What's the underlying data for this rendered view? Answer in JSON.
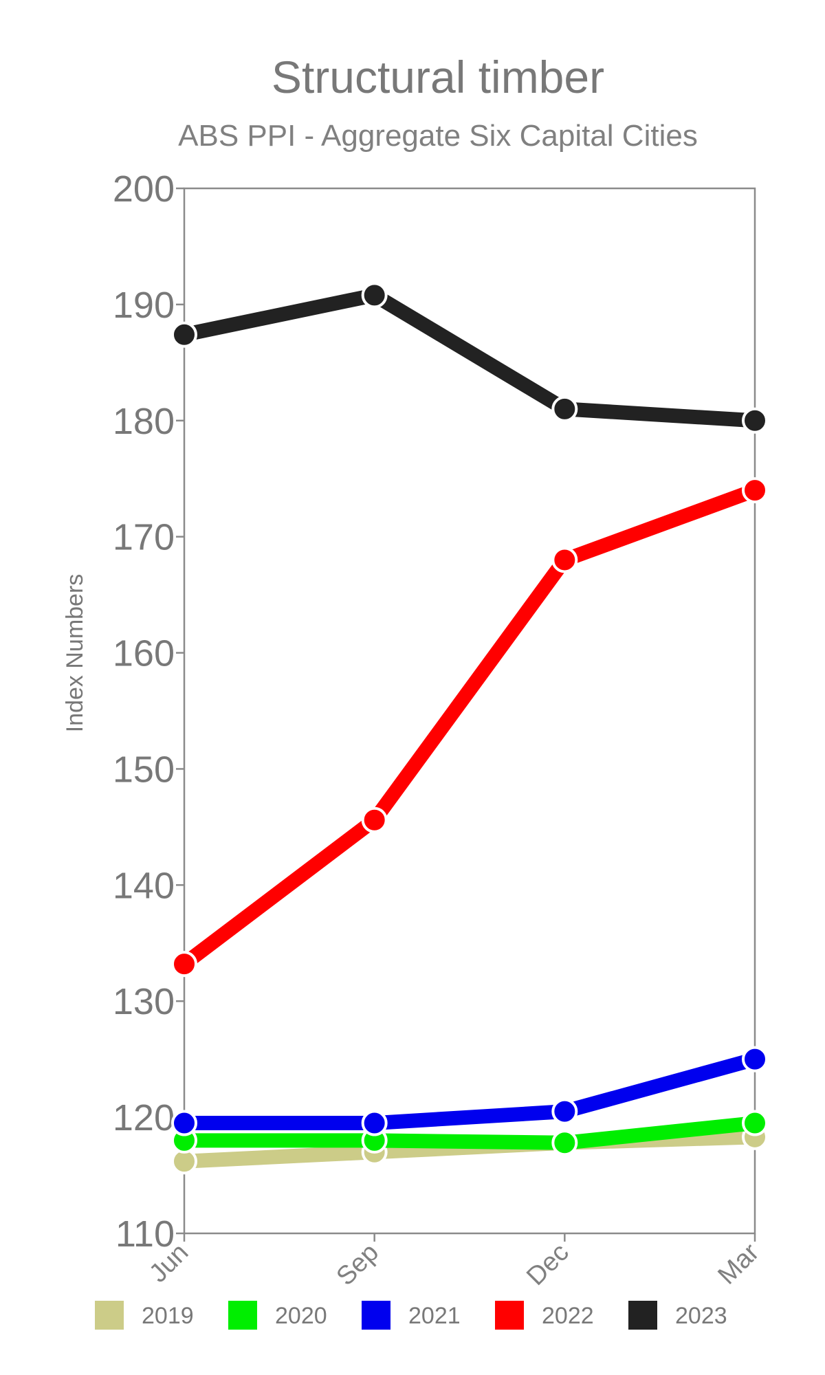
{
  "chart_data": {
    "type": "line",
    "title": "Structural timber",
    "subtitle": "ABS PPI - Aggregate Six Capital Cities",
    "ylabel": "Index Numbers",
    "xlabel": "",
    "categories": [
      "Jun",
      "Sep",
      "Dec",
      "Mar"
    ],
    "ylim": [
      110,
      200
    ],
    "yticks": [
      110,
      120,
      130,
      140,
      150,
      160,
      170,
      180,
      190,
      200
    ],
    "grid": false,
    "legend_position": "bottom",
    "series": [
      {
        "name": "2019",
        "color": "#cccc88",
        "values": [
          116.2,
          117.0,
          117.8,
          118.3
        ]
      },
      {
        "name": "2020",
        "color": "#00ee00",
        "values": [
          118.0,
          118.0,
          117.8,
          119.5
        ]
      },
      {
        "name": "2021",
        "color": "#0000ee",
        "values": [
          119.5,
          119.5,
          120.5,
          125.0
        ]
      },
      {
        "name": "2022",
        "color": "#ff0000",
        "values": [
          133.2,
          145.6,
          168.0,
          174.0
        ]
      },
      {
        "name": "2023",
        "color": "#222222",
        "values": [
          187.4,
          190.8,
          181.0,
          180.0
        ]
      }
    ]
  }
}
